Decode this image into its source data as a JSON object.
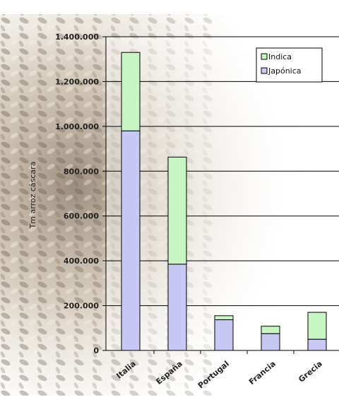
{
  "chart_data": {
    "type": "bar",
    "stacked": true,
    "categories": [
      "Italia",
      "España",
      "Portugal",
      "Francia",
      "Grecia"
    ],
    "series": [
      {
        "name": "Japónica",
        "color": "#c8c8f5",
        "values": [
          980000,
          385000,
          137000,
          75000,
          50000
        ]
      },
      {
        "name": "Indica",
        "color": "#c8f5c4",
        "values": [
          350000,
          478000,
          18000,
          33000,
          120000
        ]
      }
    ],
    "ylabel": "Tm arroz cáscara",
    "ylim": [
      0,
      1400000
    ],
    "yticks": [
      0,
      200000,
      400000,
      600000,
      800000,
      1000000,
      1200000,
      1400000
    ],
    "ytick_labels": [
      "0",
      "200.000",
      "400.000",
      "600.000",
      "800.000",
      "1.000.000",
      "1.200.000",
      "1.400.000"
    ],
    "grid": true,
    "legend_position": "top-right",
    "legend_labels": [
      "Indica",
      "Japónica"
    ],
    "background_image": "rice-grains-texture"
  }
}
